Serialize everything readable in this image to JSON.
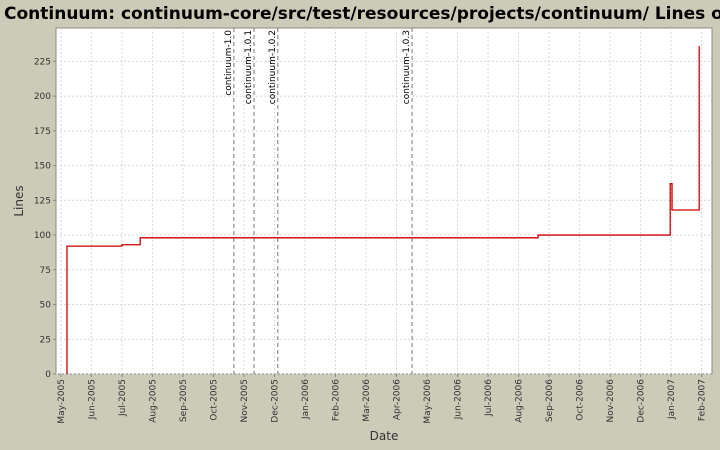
{
  "chart_data": {
    "type": "step-line",
    "title": "Continuum: continuum-core/src/test/resources/projects/continuum/ Lines of Code",
    "x_label": "Date",
    "y_label": "Lines",
    "xlim": [
      -0.16,
      21.34
    ],
    "xticks": [
      {
        "value": 0,
        "label": "May-2005"
      },
      {
        "value": 1,
        "label": "Jun-2005"
      },
      {
        "value": 2,
        "label": "Jul-2005"
      },
      {
        "value": 3,
        "label": "Aug-2005"
      },
      {
        "value": 4,
        "label": "Sep-2005"
      },
      {
        "value": 5,
        "label": "Oct-2005"
      },
      {
        "value": 6,
        "label": "Nov-2005"
      },
      {
        "value": 7,
        "label": "Dec-2005"
      },
      {
        "value": 8,
        "label": "Jan-2006"
      },
      {
        "value": 9,
        "label": "Feb-2006"
      },
      {
        "value": 10,
        "label": "Mar-2006"
      },
      {
        "value": 11,
        "label": "Apr-2006"
      },
      {
        "value": 12,
        "label": "May-2006"
      },
      {
        "value": 13,
        "label": "Jun-2006"
      },
      {
        "value": 14,
        "label": "Jul-2006"
      },
      {
        "value": 15,
        "label": "Aug-2006"
      },
      {
        "value": 16,
        "label": "Sep-2006"
      },
      {
        "value": 17,
        "label": "Oct-2006"
      },
      {
        "value": 18,
        "label": "Nov-2006"
      },
      {
        "value": 19,
        "label": "Dec-2006"
      },
      {
        "value": 20,
        "label": "Jan-2007"
      },
      {
        "value": 21,
        "label": "Feb-2007"
      }
    ],
    "ylim": [
      0,
      249
    ],
    "yticks": [
      0,
      25,
      50,
      75,
      100,
      125,
      150,
      175,
      200,
      225
    ],
    "grid": true,
    "series": [
      {
        "name": "Lines of Code",
        "color": "#cc0000",
        "x": [
          0.2,
          0.2,
          2.0,
          2.6,
          15.64,
          19.97,
          20.03,
          20.92
        ],
        "values": [
          0,
          92,
          93,
          98,
          100,
          137,
          118,
          236
        ]
      }
    ],
    "annotations": [
      {
        "x": 5.67,
        "label": "continuum-1.0"
      },
      {
        "x": 6.33,
        "label": "continuum-1.0.1"
      },
      {
        "x": 7.11,
        "label": "continuum-1.0.2"
      },
      {
        "x": 11.51,
        "label": "continuum-1.0.3"
      }
    ]
  }
}
